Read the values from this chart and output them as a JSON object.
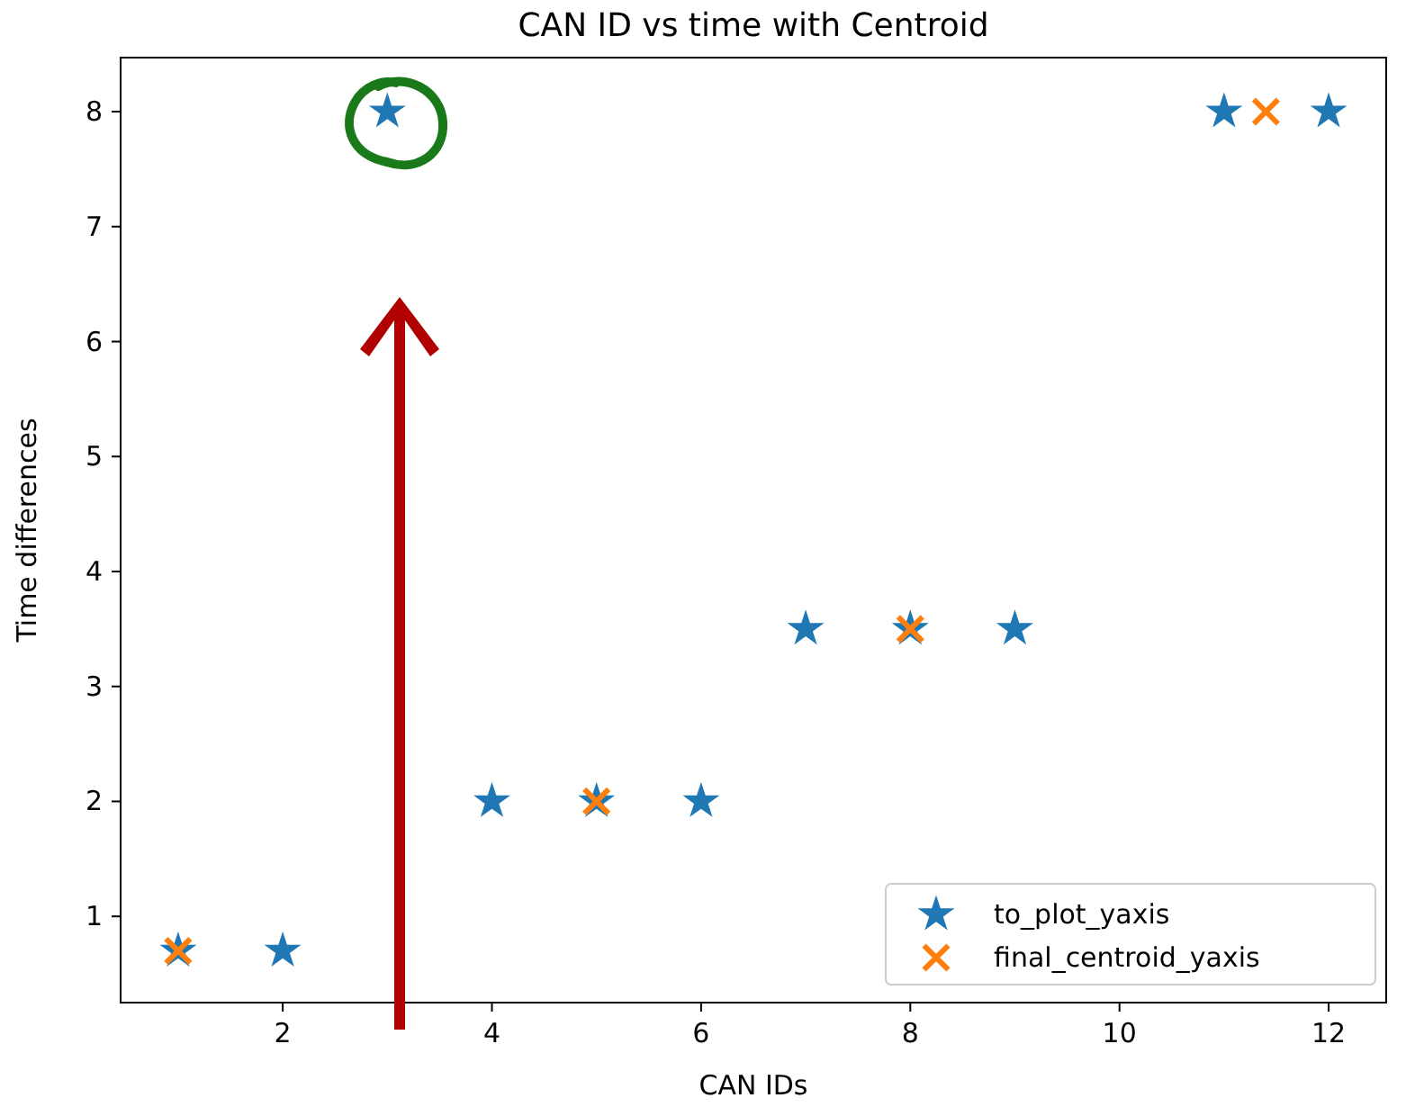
{
  "chart_data": {
    "type": "scatter",
    "title": "CAN ID vs time with Centroid",
    "xlabel": "CAN IDs",
    "ylabel": "Time differences",
    "xlim": [
      0.45,
      12.55
    ],
    "ylim": [
      0.25,
      8.47
    ],
    "xticks": [
      2,
      4,
      6,
      8,
      10,
      12
    ],
    "yticks": [
      1,
      2,
      3,
      4,
      5,
      6,
      7,
      8
    ],
    "grid": false,
    "legend": "bottom right",
    "series": [
      {
        "name": "to_plot_yaxis",
        "color": "#1f77b4",
        "marker": "star",
        "x": [
          1,
          2,
          3,
          4,
          5,
          6,
          7,
          8,
          9,
          11,
          12
        ],
        "values": [
          0.7,
          0.7,
          8,
          2,
          2,
          2,
          3.5,
          3.5,
          3.5,
          8,
          8
        ]
      },
      {
        "name": "final_centroid_yaxis",
        "color": "#ff7f0e",
        "marker": "cross",
        "x": [
          1,
          5,
          8,
          11.4
        ],
        "values": [
          0.7,
          2,
          3.5,
          8
        ]
      }
    ]
  }
}
